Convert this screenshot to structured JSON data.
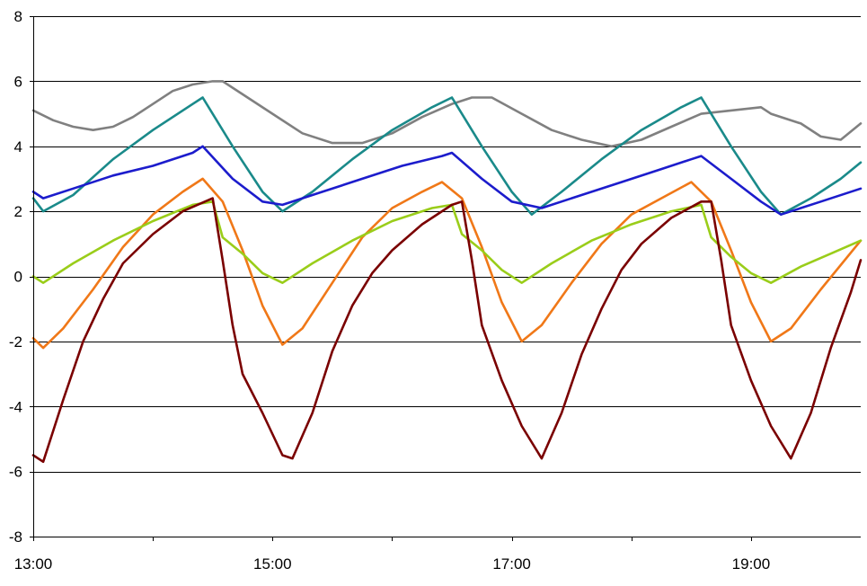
{
  "chart_data": {
    "type": "line",
    "title": "",
    "xlabel": "",
    "ylabel": "",
    "xlim": [
      "13:00",
      "19:55"
    ],
    "ylim": [
      -8,
      8
    ],
    "grid": "horizontal",
    "legend": "none",
    "x_ticks": [
      "13:00",
      "15:00",
      "17:00",
      "19:00"
    ],
    "y_ticks": [
      8,
      6,
      4,
      2,
      0,
      -2,
      -4,
      -6,
      -8
    ],
    "series": [
      {
        "color": "#808080",
        "points": [
          [
            "13:00",
            5.1
          ],
          [
            "13:10",
            4.8
          ],
          [
            "13:20",
            4.6
          ],
          [
            "13:30",
            4.5
          ],
          [
            "13:40",
            4.6
          ],
          [
            "13:50",
            4.9
          ],
          [
            "14:00",
            5.3
          ],
          [
            "14:10",
            5.7
          ],
          [
            "14:20",
            5.9
          ],
          [
            "14:30",
            6.0
          ],
          [
            "14:35",
            6.0
          ],
          [
            "14:45",
            5.6
          ],
          [
            "15:00",
            5.0
          ],
          [
            "15:15",
            4.4
          ],
          [
            "15:30",
            4.1
          ],
          [
            "15:45",
            4.1
          ],
          [
            "16:00",
            4.4
          ],
          [
            "16:15",
            4.9
          ],
          [
            "16:30",
            5.3
          ],
          [
            "16:40",
            5.5
          ],
          [
            "16:50",
            5.5
          ],
          [
            "17:05",
            5.0
          ],
          [
            "17:20",
            4.5
          ],
          [
            "17:35",
            4.2
          ],
          [
            "17:50",
            4.0
          ],
          [
            "18:05",
            4.2
          ],
          [
            "18:20",
            4.6
          ],
          [
            "18:35",
            5.0
          ],
          [
            "18:50",
            5.1
          ],
          [
            "19:05",
            5.2
          ],
          [
            "19:10",
            5.0
          ],
          [
            "19:25",
            4.7
          ],
          [
            "19:35",
            4.3
          ],
          [
            "19:45",
            4.2
          ],
          [
            "19:55",
            4.7
          ]
        ]
      },
      {
        "color": "#1a8a8a",
        "points": [
          [
            "13:00",
            2.4
          ],
          [
            "13:05",
            2.0
          ],
          [
            "13:20",
            2.5
          ],
          [
            "13:40",
            3.6
          ],
          [
            "14:00",
            4.5
          ],
          [
            "14:20",
            5.3
          ],
          [
            "14:25",
            5.5
          ],
          [
            "14:40",
            4.0
          ],
          [
            "14:55",
            2.6
          ],
          [
            "15:05",
            2.0
          ],
          [
            "15:20",
            2.6
          ],
          [
            "15:40",
            3.6
          ],
          [
            "16:00",
            4.5
          ],
          [
            "16:20",
            5.2
          ],
          [
            "16:30",
            5.5
          ],
          [
            "16:45",
            4.0
          ],
          [
            "17:00",
            2.6
          ],
          [
            "17:10",
            1.9
          ],
          [
            "17:25",
            2.6
          ],
          [
            "17:45",
            3.6
          ],
          [
            "18:05",
            4.5
          ],
          [
            "18:25",
            5.2
          ],
          [
            "18:35",
            5.5
          ],
          [
            "18:50",
            4.0
          ],
          [
            "19:05",
            2.6
          ],
          [
            "19:15",
            1.9
          ],
          [
            "19:30",
            2.4
          ],
          [
            "19:45",
            3.0
          ],
          [
            "19:55",
            3.5
          ]
        ]
      },
      {
        "color": "#1c1ccc",
        "points": [
          [
            "13:00",
            2.6
          ],
          [
            "13:05",
            2.4
          ],
          [
            "13:20",
            2.7
          ],
          [
            "13:40",
            3.1
          ],
          [
            "14:00",
            3.4
          ],
          [
            "14:20",
            3.8
          ],
          [
            "14:25",
            4.0
          ],
          [
            "14:40",
            3.0
          ],
          [
            "14:55",
            2.3
          ],
          [
            "15:05",
            2.2
          ],
          [
            "15:25",
            2.6
          ],
          [
            "15:45",
            3.0
          ],
          [
            "16:05",
            3.4
          ],
          [
            "16:25",
            3.7
          ],
          [
            "16:30",
            3.8
          ],
          [
            "16:45",
            3.0
          ],
          [
            "17:00",
            2.3
          ],
          [
            "17:15",
            2.1
          ],
          [
            "17:35",
            2.5
          ],
          [
            "17:55",
            2.9
          ],
          [
            "18:15",
            3.3
          ],
          [
            "18:30",
            3.6
          ],
          [
            "18:35",
            3.7
          ],
          [
            "18:50",
            3.0
          ],
          [
            "19:05",
            2.3
          ],
          [
            "19:15",
            1.9
          ],
          [
            "19:35",
            2.3
          ],
          [
            "19:55",
            2.7
          ]
        ]
      },
      {
        "color": "#f07818",
        "points": [
          [
            "13:00",
            -1.9
          ],
          [
            "13:05",
            -2.2
          ],
          [
            "13:15",
            -1.6
          ],
          [
            "13:30",
            -0.4
          ],
          [
            "13:45",
            0.9
          ],
          [
            "14:00",
            1.9
          ],
          [
            "14:15",
            2.6
          ],
          [
            "14:25",
            3.0
          ],
          [
            "14:35",
            2.3
          ],
          [
            "14:45",
            0.8
          ],
          [
            "14:55",
            -0.9
          ],
          [
            "15:05",
            -2.1
          ],
          [
            "15:15",
            -1.6
          ],
          [
            "15:30",
            -0.2
          ],
          [
            "15:45",
            1.2
          ],
          [
            "16:00",
            2.1
          ],
          [
            "16:15",
            2.6
          ],
          [
            "16:25",
            2.9
          ],
          [
            "16:35",
            2.4
          ],
          [
            "16:45",
            0.9
          ],
          [
            "16:55",
            -0.8
          ],
          [
            "17:05",
            -2.0
          ],
          [
            "17:15",
            -1.5
          ],
          [
            "17:30",
            -0.2
          ],
          [
            "17:45",
            1.0
          ],
          [
            "18:00",
            1.9
          ],
          [
            "18:15",
            2.4
          ],
          [
            "18:30",
            2.9
          ],
          [
            "18:40",
            2.3
          ],
          [
            "18:50",
            0.8
          ],
          [
            "19:00",
            -0.8
          ],
          [
            "19:10",
            -2.0
          ],
          [
            "19:20",
            -1.6
          ],
          [
            "19:35",
            -0.4
          ],
          [
            "19:55",
            1.1
          ]
        ]
      },
      {
        "color": "#9acd1a",
        "points": [
          [
            "13:00",
            0.0
          ],
          [
            "13:05",
            -0.2
          ],
          [
            "13:20",
            0.4
          ],
          [
            "13:40",
            1.1
          ],
          [
            "14:00",
            1.7
          ],
          [
            "14:20",
            2.2
          ],
          [
            "14:30",
            2.3
          ],
          [
            "14:35",
            1.2
          ],
          [
            "14:45",
            0.7
          ],
          [
            "14:55",
            0.1
          ],
          [
            "15:05",
            -0.2
          ],
          [
            "15:20",
            0.4
          ],
          [
            "15:40",
            1.1
          ],
          [
            "16:00",
            1.7
          ],
          [
            "16:20",
            2.1
          ],
          [
            "16:30",
            2.2
          ],
          [
            "16:35",
            1.3
          ],
          [
            "16:45",
            0.8
          ],
          [
            "16:55",
            0.2
          ],
          [
            "17:05",
            -0.2
          ],
          [
            "17:20",
            0.4
          ],
          [
            "17:40",
            1.1
          ],
          [
            "18:00",
            1.6
          ],
          [
            "18:20",
            2.0
          ],
          [
            "18:35",
            2.2
          ],
          [
            "18:40",
            1.2
          ],
          [
            "18:50",
            0.6
          ],
          [
            "19:00",
            0.1
          ],
          [
            "19:10",
            -0.2
          ],
          [
            "19:25",
            0.3
          ],
          [
            "19:40",
            0.7
          ],
          [
            "19:55",
            1.1
          ]
        ]
      },
      {
        "color": "#7a0000",
        "points": [
          [
            "13:00",
            -5.5
          ],
          [
            "13:05",
            -5.7
          ],
          [
            "13:15",
            -3.8
          ],
          [
            "13:25",
            -2.0
          ],
          [
            "13:35",
            -0.7
          ],
          [
            "13:45",
            0.4
          ],
          [
            "14:00",
            1.3
          ],
          [
            "14:15",
            2.0
          ],
          [
            "14:30",
            2.4
          ],
          [
            "14:35",
            0.5
          ],
          [
            "14:40",
            -1.5
          ],
          [
            "14:45",
            -3.0
          ],
          [
            "14:55",
            -4.2
          ],
          [
            "15:05",
            -5.5
          ],
          [
            "15:10",
            -5.6
          ],
          [
            "15:20",
            -4.2
          ],
          [
            "15:30",
            -2.3
          ],
          [
            "15:40",
            -0.9
          ],
          [
            "15:50",
            0.1
          ],
          [
            "16:00",
            0.8
          ],
          [
            "16:15",
            1.6
          ],
          [
            "16:30",
            2.2
          ],
          [
            "16:35",
            2.3
          ],
          [
            "16:40",
            0.5
          ],
          [
            "16:45",
            -1.5
          ],
          [
            "16:55",
            -3.2
          ],
          [
            "17:05",
            -4.6
          ],
          [
            "17:15",
            -5.6
          ],
          [
            "17:25",
            -4.2
          ],
          [
            "17:35",
            -2.4
          ],
          [
            "17:45",
            -1.0
          ],
          [
            "17:55",
            0.2
          ],
          [
            "18:05",
            1.0
          ],
          [
            "18:20",
            1.8
          ],
          [
            "18:35",
            2.3
          ],
          [
            "18:40",
            2.3
          ],
          [
            "18:45",
            0.5
          ],
          [
            "18:50",
            -1.5
          ],
          [
            "19:00",
            -3.2
          ],
          [
            "19:10",
            -4.6
          ],
          [
            "19:20",
            -5.6
          ],
          [
            "19:30",
            -4.2
          ],
          [
            "19:40",
            -2.2
          ],
          [
            "19:50",
            -0.5
          ],
          [
            "19:55",
            0.5
          ]
        ]
      }
    ]
  }
}
